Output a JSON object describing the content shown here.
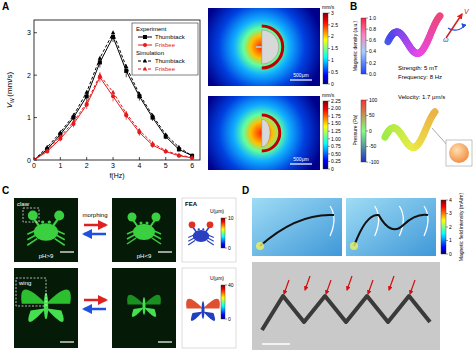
{
  "chart_data": {
    "type": "line",
    "x_label": "f(Hz)",
    "y_label": "V",
    "y_label_sub": "W",
    "y_label_unit": "(mm/s)",
    "x": [
      0,
      0.5,
      1,
      1.5,
      2,
      2.5,
      3,
      3.5,
      4,
      4.5,
      5,
      5.5,
      6
    ],
    "xlim": [
      0,
      6.3
    ],
    "xticks": [
      0,
      1,
      2,
      3,
      4,
      5,
      6
    ],
    "ylim": [
      0,
      3.3
    ],
    "yticks": [
      0,
      1,
      2,
      3
    ],
    "legend": "upper right",
    "legend_groups": [
      "Experiment",
      "Simulation"
    ],
    "series": [
      {
        "name": "Thumbtack",
        "group": "Experiment",
        "color": "#000000",
        "line_style": "solid",
        "marker": "square",
        "values": [
          0,
          0.25,
          0.6,
          1.0,
          1.5,
          2.3,
          2.9,
          2.1,
          1.5,
          1.0,
          0.55,
          0.25,
          0.1
        ],
        "errors": [
          0,
          0.05,
          0.08,
          0.1,
          0.1,
          0.12,
          0.12,
          0.15,
          0.1,
          0.08,
          0.06,
          0.05,
          0.03
        ]
      },
      {
        "name": "Frisbee",
        "group": "Experiment",
        "color": "#e41a1c",
        "line_style": "solid",
        "marker": "circle",
        "values": [
          0,
          0.2,
          0.5,
          0.85,
          1.3,
          1.95,
          1.5,
          1.05,
          0.65,
          0.35,
          0.2,
          0.1,
          0.05
        ],
        "errors": [
          0,
          0.04,
          0.06,
          0.08,
          0.1,
          0.12,
          0.12,
          0.1,
          0.08,
          0.06,
          0.05,
          0.04,
          0.03
        ]
      },
      {
        "name": "Thumbtack",
        "group": "Simulation",
        "color": "#000000",
        "line_style": "dashed",
        "marker": "triangle",
        "values": [
          0,
          0.3,
          0.65,
          1.05,
          1.6,
          2.4,
          3.0,
          2.2,
          1.55,
          1.05,
          0.6,
          0.3,
          0.1
        ]
      },
      {
        "name": "Frisbee",
        "group": "Simulation",
        "color": "#e41a1c",
        "line_style": "dashed",
        "marker": "triangle",
        "values": [
          0,
          0.22,
          0.55,
          0.9,
          1.35,
          2.0,
          1.6,
          1.1,
          0.7,
          0.4,
          0.22,
          0.12,
          0.06
        ]
      }
    ]
  },
  "panels": {
    "letters": [
      "A",
      "B",
      "C",
      "D"
    ],
    "flow_maps": [
      {
        "label": "mm/s",
        "lim": [
          0,
          3
        ],
        "ticks": [
          0,
          0.5,
          1,
          1.5,
          2,
          2.5,
          3
        ],
        "scale_bar": "500μm"
      },
      {
        "label": "mm/s",
        "lim": [
          0,
          2.25
        ],
        "ticks": [
          0,
          0.25,
          {
            "value": 0.5,
            "label": "0.50"
          },
          0.75,
          {
            "value": 1,
            "label": "1.00"
          },
          1.25,
          {
            "value": 1.5,
            "label": "1.50"
          },
          1.75,
          {
            "value": 2,
            "label": "2.00"
          },
          2.25
        ],
        "scale_bar": "500μm"
      }
    ],
    "helix": {
      "density_bar": {
        "label": "Magnetic density (a.u.)",
        "lim": [
          0,
          1
        ],
        "ticks": [
          {
            "value": 0,
            "label": "0.0"
          },
          0.2,
          0.4,
          0.6,
          0.8,
          {
            "value": 1,
            "label": "1.0"
          }
        ]
      },
      "strength": "Strength: 5 mT",
      "frequency": "Frequency: 8 Hz",
      "velocity": "Velocity: 1.7 μm/s",
      "pressure_bar": {
        "label": "Pressure (Pa)",
        "lim": [
          -100,
          100
        ],
        "ticks": [
          -100,
          -50,
          0,
          50,
          100
        ]
      },
      "v_symbol": "V",
      "omega_symbol": "ω"
    },
    "morphing": {
      "claw": "claw",
      "wing": "wing",
      "ph_high": "pH>9",
      "ph_low": "pH<9",
      "arrow_label": "morphing",
      "fea": "FEA",
      "crab_bar": {
        "label": "U(μm)",
        "lim": [
          0,
          10
        ],
        "ticks": [
          0,
          10
        ]
      },
      "wing_bar": {
        "label": "U(μm)",
        "lim": [
          0,
          40
        ],
        "ticks": [
          0,
          40
        ]
      }
    },
    "swarm": {
      "field_bar": {
        "label": "Magnetic field intensity (mA/m)",
        "lim": [
          0,
          4
        ],
        "ticks": [
          0,
          1,
          2,
          3,
          4
        ]
      }
    }
  }
}
